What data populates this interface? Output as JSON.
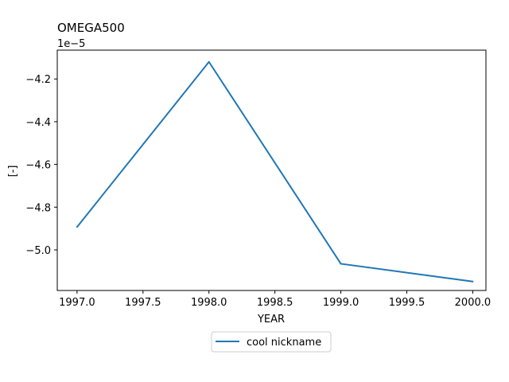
{
  "chart_data": {
    "type": "line",
    "title": "OMEGA500",
    "xlabel": "YEAR",
    "ylabel": "[-]",
    "y_scale_label": "1e−5",
    "x": [
      1997.0,
      1998.0,
      1999.0,
      2000.0
    ],
    "series": [
      {
        "name": "cool nickname",
        "color": "#1f77b4",
        "values": [
          -4.893e-05,
          -4.12e-05,
          -5.065e-05,
          -5.148e-05
        ]
      }
    ],
    "xlim": [
      1996.85,
      2000.1
    ],
    "ylim": [
      -5.19e-05,
      -4.065e-05
    ],
    "xticks": [
      1997.0,
      1997.5,
      1998.0,
      1998.5,
      1999.0,
      1999.5,
      2000.0
    ],
    "xtick_labels": [
      "1997.0",
      "1997.5",
      "1998.0",
      "1998.5",
      "1999.0",
      "1999.5",
      "2000.0"
    ],
    "yticks": [
      -4.2e-05,
      -4.4e-05,
      -4.6e-05,
      -4.8e-05,
      -5e-05
    ],
    "ytick_labels": [
      "−4.2",
      "−4.4",
      "−4.6",
      "−4.8",
      "−5.0"
    ],
    "grid": false,
    "legend_position": "below plot, centered"
  }
}
